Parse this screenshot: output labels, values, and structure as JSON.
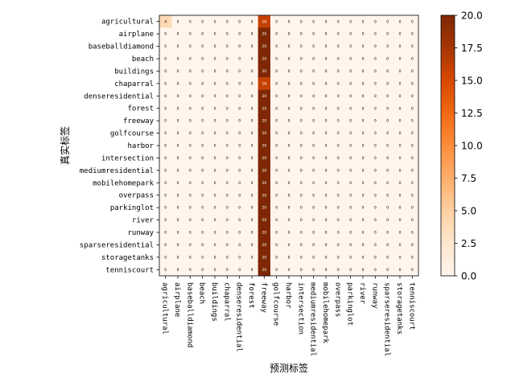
{
  "chart_data": {
    "type": "heatmap",
    "title": "",
    "xlabel": "预测标签",
    "ylabel": "真实标签",
    "x_categories": [
      "agricultural",
      "airplane",
      "baseballdiamond",
      "beach",
      "buildings",
      "chaparral",
      "denseresidential",
      "forest",
      "freeway",
      "golfcourse",
      "harbor",
      "intersection",
      "mediumresidential",
      "mobilehomepark",
      "overpass",
      "parkinglot",
      "river",
      "runway",
      "sparseresidential",
      "storagetanks",
      "tenniscourt"
    ],
    "y_categories": [
      "agricultural",
      "airplane",
      "baseballdiamond",
      "beach",
      "buildings",
      "chaparral",
      "denseresidential",
      "forest",
      "freeway",
      "golfcourse",
      "harbor",
      "intersection",
      "mediumresidential",
      "mobilehomepark",
      "overpass",
      "parkinglot",
      "river",
      "runway",
      "sparseresidential",
      "storagetanks",
      "tenniscourt"
    ],
    "values": [
      [
        4,
        0,
        0,
        0,
        0,
        0,
        0,
        0,
        16,
        0,
        0,
        0,
        0,
        0,
        0,
        0,
        0,
        0,
        0,
        0,
        0
      ],
      [
        0,
        0,
        0,
        0,
        0,
        0,
        0,
        0,
        20,
        0,
        0,
        0,
        0,
        0,
        0,
        0,
        0,
        0,
        0,
        0,
        0
      ],
      [
        0,
        0,
        0,
        0,
        0,
        0,
        0,
        0,
        20,
        0,
        0,
        0,
        0,
        0,
        0,
        0,
        0,
        0,
        0,
        0,
        0
      ],
      [
        0,
        0,
        0,
        0,
        0,
        0,
        0,
        0,
        20,
        0,
        0,
        0,
        0,
        0,
        0,
        0,
        0,
        0,
        0,
        0,
        0
      ],
      [
        0,
        0,
        0,
        0,
        0,
        0,
        0,
        0,
        20,
        0,
        0,
        0,
        0,
        0,
        0,
        0,
        0,
        0,
        0,
        0,
        0
      ],
      [
        0,
        0,
        0,
        0,
        0,
        0,
        0,
        0,
        16,
        0,
        0,
        0,
        0,
        0,
        0,
        0,
        0,
        0,
        0,
        0,
        0
      ],
      [
        0,
        0,
        0,
        0,
        0,
        0,
        0,
        0,
        20,
        0,
        0,
        0,
        0,
        0,
        0,
        0,
        0,
        0,
        0,
        0,
        0
      ],
      [
        0,
        0,
        0,
        0,
        0,
        0,
        0,
        0,
        20,
        0,
        0,
        0,
        0,
        0,
        0,
        0,
        0,
        0,
        0,
        0,
        0
      ],
      [
        0,
        0,
        0,
        0,
        0,
        0,
        0,
        0,
        20,
        0,
        0,
        0,
        0,
        0,
        0,
        0,
        0,
        0,
        0,
        0,
        0
      ],
      [
        0,
        0,
        0,
        0,
        0,
        0,
        0,
        0,
        20,
        0,
        0,
        0,
        0,
        0,
        0,
        0,
        0,
        0,
        0,
        0,
        0
      ],
      [
        0,
        0,
        0,
        0,
        0,
        0,
        0,
        0,
        20,
        0,
        0,
        0,
        0,
        0,
        0,
        0,
        0,
        0,
        0,
        0,
        0
      ],
      [
        0,
        0,
        0,
        0,
        0,
        0,
        0,
        0,
        20,
        0,
        0,
        0,
        0,
        0,
        0,
        0,
        0,
        0,
        0,
        0,
        0
      ],
      [
        0,
        0,
        0,
        0,
        0,
        0,
        0,
        0,
        20,
        0,
        0,
        0,
        0,
        0,
        0,
        0,
        0,
        0,
        0,
        0,
        0
      ],
      [
        0,
        0,
        0,
        0,
        0,
        0,
        0,
        0,
        20,
        0,
        0,
        0,
        0,
        0,
        0,
        0,
        0,
        0,
        0,
        0,
        0
      ],
      [
        0,
        0,
        0,
        0,
        0,
        0,
        0,
        0,
        20,
        0,
        0,
        0,
        0,
        0,
        0,
        0,
        0,
        0,
        0,
        0,
        0
      ],
      [
        0,
        0,
        0,
        0,
        0,
        0,
        0,
        0,
        20,
        0,
        0,
        0,
        0,
        0,
        0,
        0,
        0,
        0,
        0,
        0,
        0
      ],
      [
        0,
        0,
        0,
        0,
        0,
        0,
        0,
        0,
        20,
        0,
        0,
        0,
        0,
        0,
        0,
        0,
        0,
        0,
        0,
        0,
        0
      ],
      [
        0,
        0,
        0,
        0,
        0,
        0,
        0,
        0,
        20,
        0,
        0,
        0,
        0,
        0,
        0,
        0,
        0,
        0,
        0,
        0,
        0
      ],
      [
        0,
        0,
        0,
        0,
        0,
        0,
        0,
        0,
        20,
        0,
        0,
        0,
        0,
        0,
        0,
        0,
        0,
        0,
        0,
        0,
        0
      ],
      [
        0,
        0,
        0,
        0,
        0,
        0,
        0,
        0,
        20,
        0,
        0,
        0,
        0,
        0,
        0,
        0,
        0,
        0,
        0,
        0,
        0
      ],
      [
        0,
        0,
        0,
        0,
        0,
        0,
        0,
        0,
        20,
        0,
        0,
        0,
        0,
        0,
        0,
        0,
        0,
        0,
        0,
        0,
        0
      ]
    ],
    "colormap": "Oranges",
    "color_range": [
      0,
      20
    ],
    "colorbar_ticks": [
      "0.0",
      "2.5",
      "5.0",
      "7.5",
      "10.0",
      "12.5",
      "15.0",
      "17.5",
      "20.0"
    ],
    "grid": false
  }
}
